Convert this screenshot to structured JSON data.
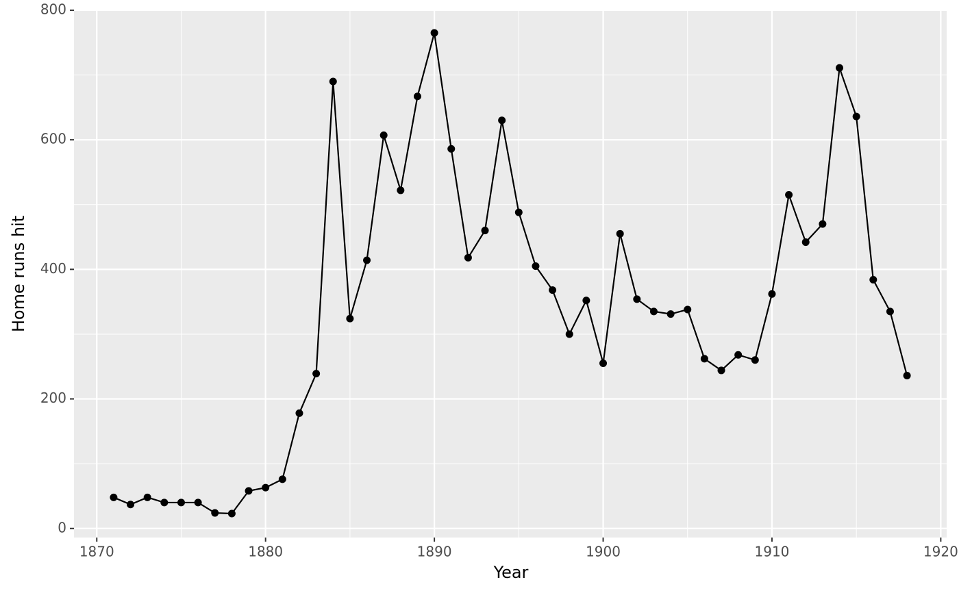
{
  "chart_data": {
    "type": "line",
    "x_label": "Year",
    "y_label": "Home runs hit",
    "x": [
      1871,
      1872,
      1873,
      1874,
      1875,
      1876,
      1877,
      1878,
      1879,
      1880,
      1881,
      1882,
      1883,
      1884,
      1885,
      1886,
      1887,
      1888,
      1889,
      1890,
      1891,
      1892,
      1893,
      1894,
      1895,
      1896,
      1897,
      1898,
      1899,
      1900,
      1901,
      1902,
      1903,
      1904,
      1905,
      1906,
      1907,
      1908,
      1909,
      1910,
      1911,
      1912,
      1913,
      1914,
      1915,
      1916,
      1917,
      1918
    ],
    "series": [
      {
        "color": "#000000",
        "values": [
          48,
          37,
          48,
          40,
          40,
          40,
          24,
          23,
          58,
          63,
          76,
          178,
          239,
          690,
          324,
          414,
          607,
          522,
          667,
          765,
          586,
          418,
          460,
          630,
          488,
          405,
          368,
          300,
          352,
          255,
          455,
          354,
          335,
          331,
          338,
          262,
          244,
          268,
          260,
          362,
          515,
          442,
          470,
          711,
          636,
          384,
          335,
          236
        ]
      }
    ],
    "xlim": [
      1868.65,
      1920.35
    ],
    "ylim": [
      -14,
      801
    ],
    "xticks": [
      1870,
      1880,
      1890,
      1900,
      1910,
      1920
    ],
    "yticks": [
      0,
      200,
      400,
      600,
      800
    ],
    "grid": true
  }
}
